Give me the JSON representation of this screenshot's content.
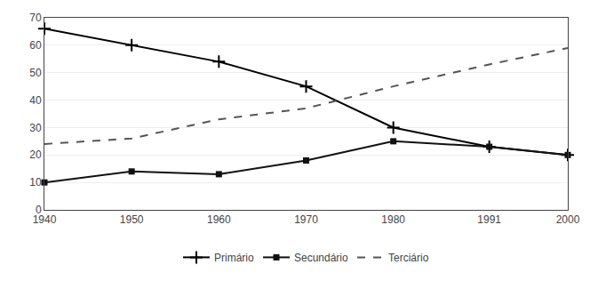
{
  "chart_data": {
    "type": "line",
    "x": [
      1940,
      1950,
      1960,
      1970,
      1980,
      1991,
      2000
    ],
    "series": [
      {
        "name": "Primário",
        "color": "#000000",
        "values": [
          66,
          60,
          54,
          45,
          30,
          23,
          20
        ],
        "marker": "plus",
        "line_style": "solid"
      },
      {
        "name": "Secundário",
        "color": "#111111",
        "values": [
          10,
          14,
          13,
          18,
          25,
          23,
          20
        ],
        "marker": "square",
        "line_style": "solid"
      },
      {
        "name": "Terciário",
        "color": "#555555",
        "values": [
          24,
          26,
          33,
          37,
          45,
          53,
          59
        ],
        "marker": "none",
        "line_style": "dashed"
      }
    ],
    "xlim": [
      1940,
      2000
    ],
    "xticks": [
      1940,
      1950,
      1960,
      1970,
      1980,
      1991,
      2000
    ],
    "ylim": [
      0,
      70
    ],
    "yticks": [
      0,
      10,
      20,
      30,
      40,
      50,
      60,
      70
    ],
    "grid": "y",
    "legend": "bottom"
  }
}
